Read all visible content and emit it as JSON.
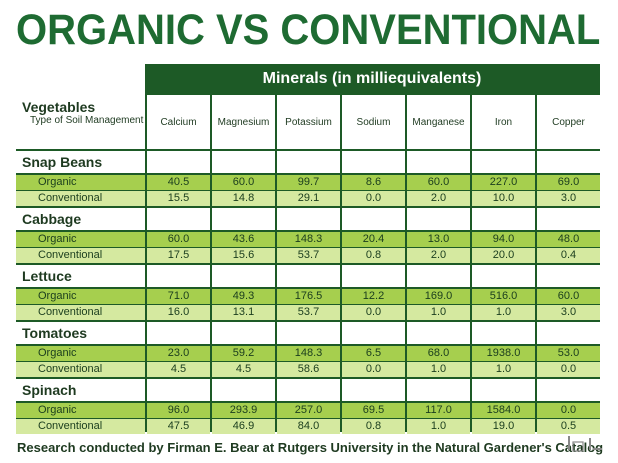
{
  "title": "ORGANIC VS CONVENTIONAL",
  "minerals_header": "Minerals (in milliequivalents)",
  "row_header": {
    "vegetables": "Vegetables",
    "soil": "Type of Soil Management"
  },
  "columns": [
    "Calcium",
    "Magnesium",
    "Potassium",
    "Sodium",
    "Manganese",
    "Iron",
    "Copper"
  ],
  "groups": [
    {
      "name": "Snap Beans",
      "rows": [
        {
          "label": "Organic",
          "values": [
            "40.5",
            "60.0",
            "99.7",
            "8.6",
            "60.0",
            "227.0",
            "69.0"
          ]
        },
        {
          "label": "Conventional",
          "values": [
            "15.5",
            "14.8",
            "29.1",
            "0.0",
            "2.0",
            "10.0",
            "3.0"
          ]
        }
      ]
    },
    {
      "name": "Cabbage",
      "rows": [
        {
          "label": "Organic",
          "values": [
            "60.0",
            "43.6",
            "148.3",
            "20.4",
            "13.0",
            "94.0",
            "48.0"
          ]
        },
        {
          "label": "Conventional",
          "values": [
            "17.5",
            "15.6",
            "53.7",
            "0.8",
            "2.0",
            "20.0",
            "0.4"
          ]
        }
      ]
    },
    {
      "name": "Lettuce",
      "rows": [
        {
          "label": "Organic",
          "values": [
            "71.0",
            "49.3",
            "176.5",
            "12.2",
            "169.0",
            "516.0",
            "60.0"
          ]
        },
        {
          "label": "Conventional",
          "values": [
            "16.0",
            "13.1",
            "53.7",
            "0.0",
            "1.0",
            "1.0",
            "3.0"
          ]
        }
      ]
    },
    {
      "name": "Tomatoes",
      "rows": [
        {
          "label": "Organic",
          "values": [
            "23.0",
            "59.2",
            "148.3",
            "6.5",
            "68.0",
            "1938.0",
            "53.0"
          ]
        },
        {
          "label": "Conventional",
          "values": [
            "4.5",
            "4.5",
            "58.6",
            "0.0",
            "1.0",
            "1.0",
            "0.0"
          ]
        }
      ]
    },
    {
      "name": "Spinach",
      "rows": [
        {
          "label": "Organic",
          "values": [
            "96.0",
            "293.9",
            "257.0",
            "69.5",
            "117.0",
            "1584.0",
            "0.0"
          ]
        },
        {
          "label": "Conventional",
          "values": [
            "47.5",
            "46.9",
            "84.0",
            "0.8",
            "1.0",
            "19.0",
            "0.5"
          ]
        }
      ]
    }
  ],
  "footer": "Research conducted by Firman E. Bear at Rutgers University in the Natural Gardener's Catalog",
  "colors": {
    "title": "#1e6b32",
    "dark_green": "#1d5a26",
    "organic_row": "#a6cf4e",
    "conventional_row": "#d5e9a0"
  }
}
